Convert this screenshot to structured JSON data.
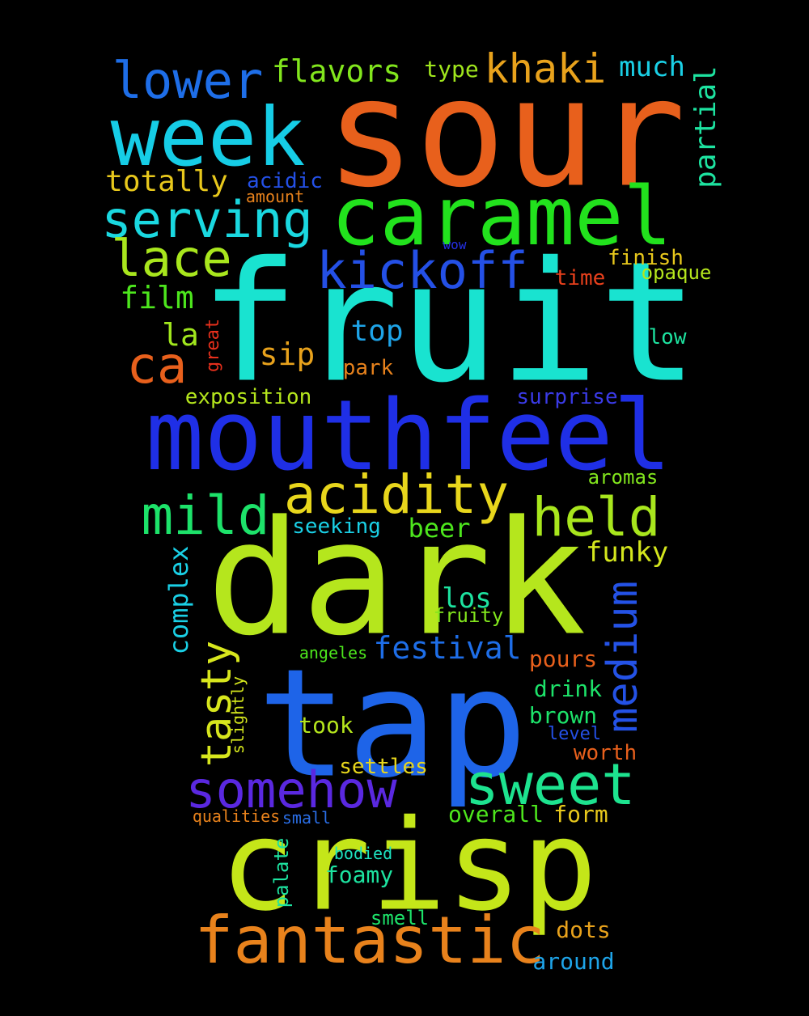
{
  "words": [
    {
      "text": "sour",
      "color": "#e8601c"
    },
    {
      "text": "fruit",
      "color": "#19e3d0"
    },
    {
      "text": "dark",
      "color": "#b5e61d"
    },
    {
      "text": "tap",
      "color": "#1e64e8"
    },
    {
      "text": "crisp",
      "color": "#c4e619"
    },
    {
      "text": "mouthfeel",
      "color": "#1f2fe6"
    },
    {
      "text": "caramel",
      "color": "#22e21d"
    },
    {
      "text": "week",
      "color": "#16cde6"
    },
    {
      "text": "fantastic",
      "color": "#e8821c"
    },
    {
      "text": "somehow",
      "color": "#5a28e0"
    },
    {
      "text": "sweet",
      "color": "#1de38f"
    },
    {
      "text": "acidity",
      "color": "#e8d61c"
    },
    {
      "text": "held",
      "color": "#a8e61d"
    },
    {
      "text": "mild",
      "color": "#1de26a"
    },
    {
      "text": "kickoff",
      "color": "#2450e6"
    },
    {
      "text": "serving",
      "color": "#1ad8e0"
    },
    {
      "text": "lower",
      "color": "#1e6ee8"
    },
    {
      "text": "lace",
      "color": "#a8e61d"
    },
    {
      "text": "ca",
      "color": "#e8601c"
    },
    {
      "text": "khaki",
      "color": "#e8a21c"
    },
    {
      "text": "tasty",
      "color": "#d7e61d"
    },
    {
      "text": "medium",
      "color": "#2452e6"
    },
    {
      "text": "festival",
      "color": "#1e6ee8"
    },
    {
      "text": "flavors",
      "color": "#82e61d"
    },
    {
      "text": "totally",
      "color": "#e8c81c"
    },
    {
      "text": "complex",
      "color": "#1ad0e6"
    },
    {
      "text": "film",
      "color": "#4de61d"
    },
    {
      "text": "sip",
      "color": "#e8a21c"
    },
    {
      "text": "top",
      "color": "#1ea4e8"
    },
    {
      "text": "partial",
      "color": "#1de3a0"
    },
    {
      "text": "la",
      "color": "#a0e61d"
    },
    {
      "text": "much",
      "color": "#1ad0e6"
    },
    {
      "text": "funky",
      "color": "#d4e61d"
    },
    {
      "text": "beer",
      "color": "#4de61d"
    },
    {
      "text": "los",
      "color": "#1de3a0"
    },
    {
      "text": "overall",
      "color": "#4de61d"
    },
    {
      "text": "brown",
      "color": "#1de36a"
    },
    {
      "text": "drink",
      "color": "#1de36a"
    },
    {
      "text": "pours",
      "color": "#e8601c"
    },
    {
      "text": "foamy",
      "color": "#1de3a0"
    },
    {
      "text": "dots",
      "color": "#e8a21c"
    },
    {
      "text": "around",
      "color": "#1ea4e8"
    },
    {
      "text": "form",
      "color": "#e8c81c"
    },
    {
      "text": "exposition",
      "color": "#b5e61d"
    },
    {
      "text": "surprise",
      "color": "#3a3ae6"
    },
    {
      "text": "took",
      "color": "#b5e61d"
    },
    {
      "text": "settles",
      "color": "#e8d61c"
    },
    {
      "text": "worth",
      "color": "#e8601c"
    },
    {
      "text": "type",
      "color": "#a0e61d"
    },
    {
      "text": "finish",
      "color": "#e8c81c"
    },
    {
      "text": "time",
      "color": "#e8401c"
    },
    {
      "text": "opaque",
      "color": "#b5e61d"
    },
    {
      "text": "low",
      "color": "#1de3a0"
    },
    {
      "text": "park",
      "color": "#e8821c"
    },
    {
      "text": "seeking",
      "color": "#1ad0e6"
    },
    {
      "text": "aromas",
      "color": "#82e61d"
    },
    {
      "text": "fruity",
      "color": "#82e61d"
    },
    {
      "text": "acidic",
      "color": "#2450e6"
    },
    {
      "text": "amount",
      "color": "#e8821c"
    },
    {
      "text": "smell",
      "color": "#1de36a"
    },
    {
      "text": "palate",
      "color": "#1de3a0"
    },
    {
      "text": "level",
      "color": "#2450e6"
    },
    {
      "text": "angeles",
      "color": "#4de61d"
    },
    {
      "text": "qualities",
      "color": "#e8821c"
    },
    {
      "text": "small",
      "color": "#2a6ee6"
    },
    {
      "text": "bodied",
      "color": "#1de3c0"
    },
    {
      "text": "slightly",
      "color": "#d4e61d"
    },
    {
      "text": "great",
      "color": "#e8301c"
    },
    {
      "text": "wow",
      "color": "#2430e6"
    }
  ]
}
